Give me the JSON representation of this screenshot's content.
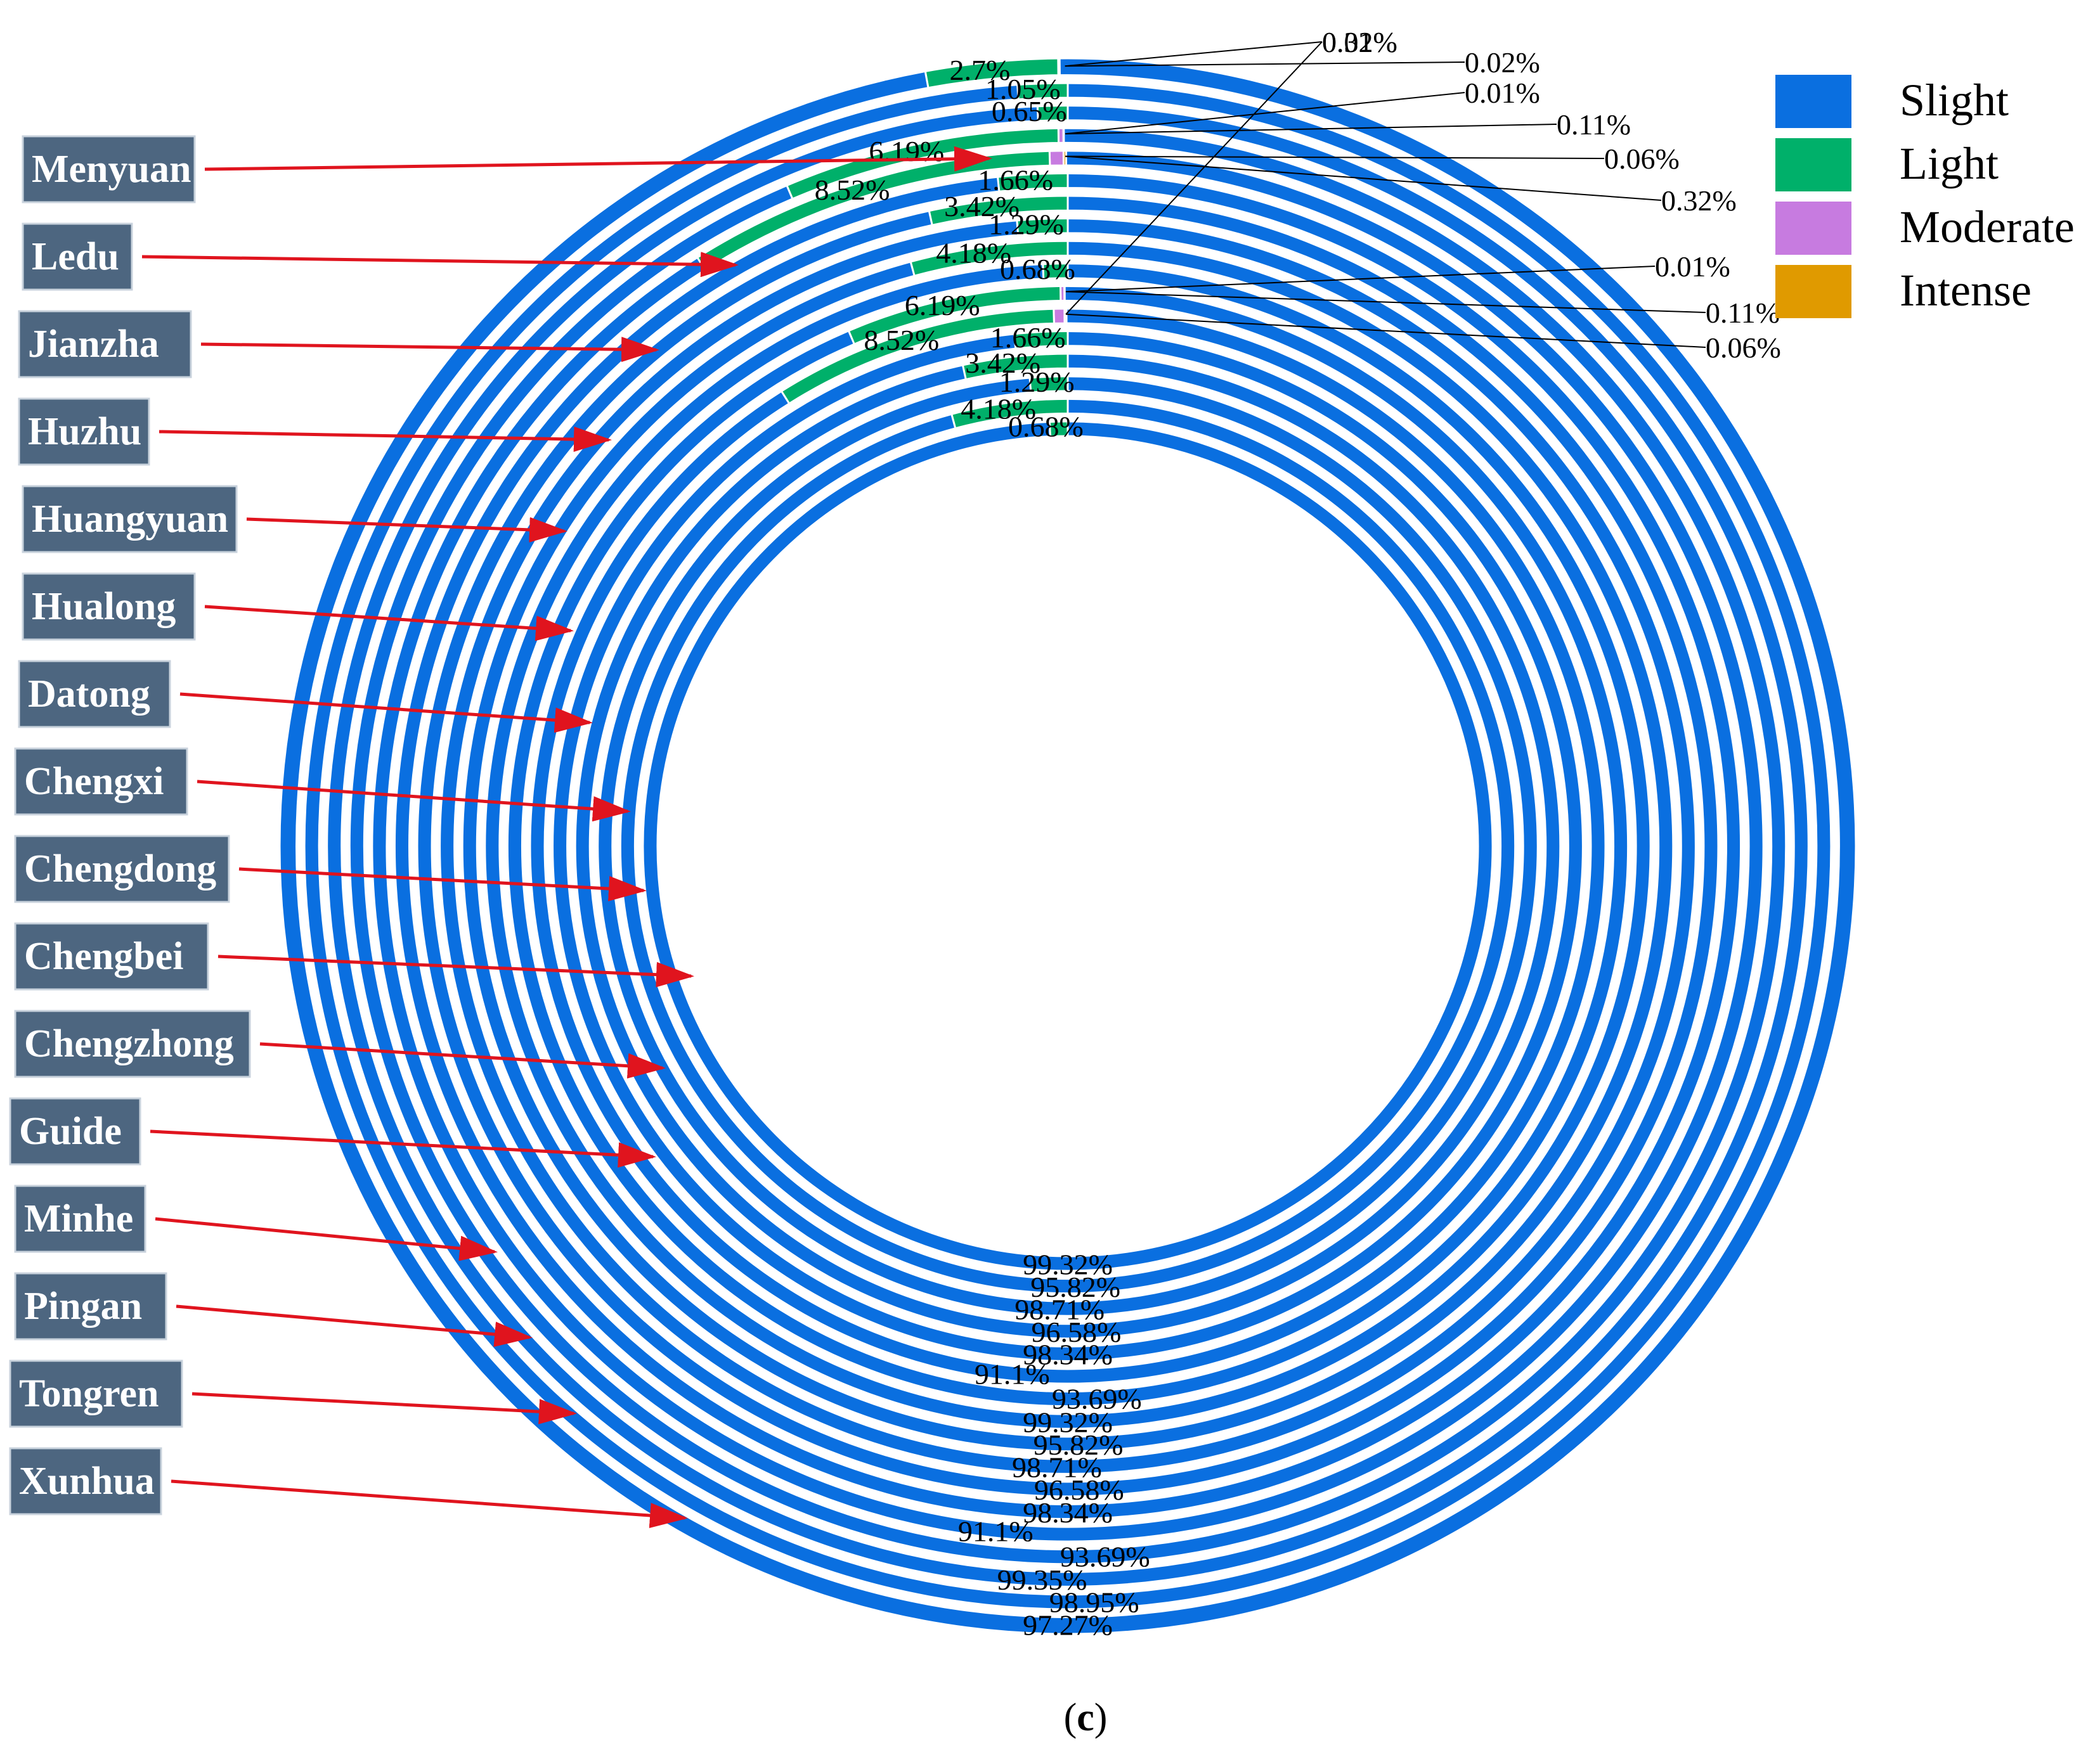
{
  "chart_data": {
    "type": "pie",
    "subtype": "nested-donut",
    "caption_letter": "c",
    "legend": {
      "placement": "top-right",
      "items": [
        {
          "name": "Slight",
          "color": "#0a6fe0"
        },
        {
          "name": "Light",
          "color": "#00b06a"
        },
        {
          "name": "Moderate",
          "color": "#c77be0"
        },
        {
          "name": "Intense",
          "color": "#e09a00"
        }
      ]
    },
    "rings_outer_to_inner": [
      {
        "county": "Xunhua",
        "slight": 97.27,
        "light": 2.7,
        "moderate": 0.02,
        "intense": 0.01,
        "slight_label": "97.27%",
        "light_label": "2.7%",
        "moderate_label": "0.02%",
        "intense_label": "0.01%"
      },
      {
        "county": "Tongren",
        "slight": 98.95,
        "light": 1.05,
        "slight_label": "98.95%",
        "light_label": "1.05%"
      },
      {
        "county": "Pingan",
        "slight": 99.35,
        "light": 0.65,
        "slight_label": "99.35%",
        "light_label": "0.65%"
      },
      {
        "county": "Minhe",
        "slight": 93.69,
        "light": 6.19,
        "moderate": 0.11,
        "intense": 0.01,
        "slight_label": "93.69%",
        "light_label": "6.19%",
        "moderate_label": "0.11%",
        "intense_label": "0.01%"
      },
      {
        "county": "Guide",
        "slight": 91.1,
        "light": 8.52,
        "moderate": 0.32,
        "intense": 0.06,
        "slight_label": "91.1%",
        "light_label": "8.52%",
        "moderate_label": "0.32%",
        "intense_label": "0.06%"
      },
      {
        "county": "Chengzhong",
        "slight": 98.34,
        "light": 1.66,
        "slight_label": "98.34%",
        "light_label": "1.66%"
      },
      {
        "county": "Chengbei",
        "slight": 96.58,
        "light": 3.42,
        "slight_label": "96.58%",
        "light_label": "3.42%"
      },
      {
        "county": "Chengdong",
        "slight": 98.71,
        "light": 1.29,
        "slight_label": "98.71%",
        "light_label": "1.29%"
      },
      {
        "county": "Chengxi",
        "slight": 95.82,
        "light": 4.18,
        "slight_label": "95.82%",
        "light_label": "4.18%"
      },
      {
        "county": "Datong",
        "slight": 99.32,
        "light": 0.68,
        "slight_label": "99.32%",
        "light_label": "0.68%"
      },
      {
        "county": "Hualong",
        "slight": 93.69,
        "light": 6.19,
        "moderate": 0.11,
        "intense": 0.01,
        "slight_label": "93.69%",
        "light_label": "6.19%",
        "moderate_label": "0.11%",
        "intense_label": "0.01%"
      },
      {
        "county": "Huangyuan",
        "slight": 91.1,
        "light": 8.52,
        "moderate": 0.32,
        "intense": 0.06,
        "slight_label": "91.1%",
        "light_label": "8.52%",
        "moderate_label": "0.32%",
        "intense_label": "0.06%"
      },
      {
        "county": "Huzhu",
        "slight": 98.34,
        "light": 1.66,
        "slight_label": "98.34%",
        "light_label": "1.66%"
      },
      {
        "county": "Jianzha",
        "slight": 96.58,
        "light": 3.42,
        "slight_label": "96.58%",
        "light_label": "3.42%"
      },
      {
        "county": "Ledu",
        "slight": 98.71,
        "light": 1.29,
        "slight_label": "98.71%",
        "light_label": "1.29%"
      },
      {
        "county": "Menyuan",
        "slight": 95.82,
        "light": 4.18,
        "slight_label": "95.82%",
        "light_label": "4.18%"
      },
      {
        "county": "",
        "slight": 99.32,
        "light": 0.68,
        "slight_label": "99.32%",
        "light_label": "0.68%"
      }
    ],
    "county_labels_top_to_bottom": [
      "Menyuan",
      "Ledu",
      "Jianzha",
      "Huzhu",
      "Huangyuan",
      "Hualong",
      "Datong",
      "Chengxi",
      "Chengdong",
      "Chengbei",
      "Chengzhong",
      "Guide",
      "Minhe",
      "Pingan",
      "Tongren",
      "Xunhua"
    ]
  },
  "colors": {
    "ring_gap": "#ffffff",
    "arrow": "#e0141e",
    "county_box": "#4d6680",
    "leader_line": "#000000"
  }
}
